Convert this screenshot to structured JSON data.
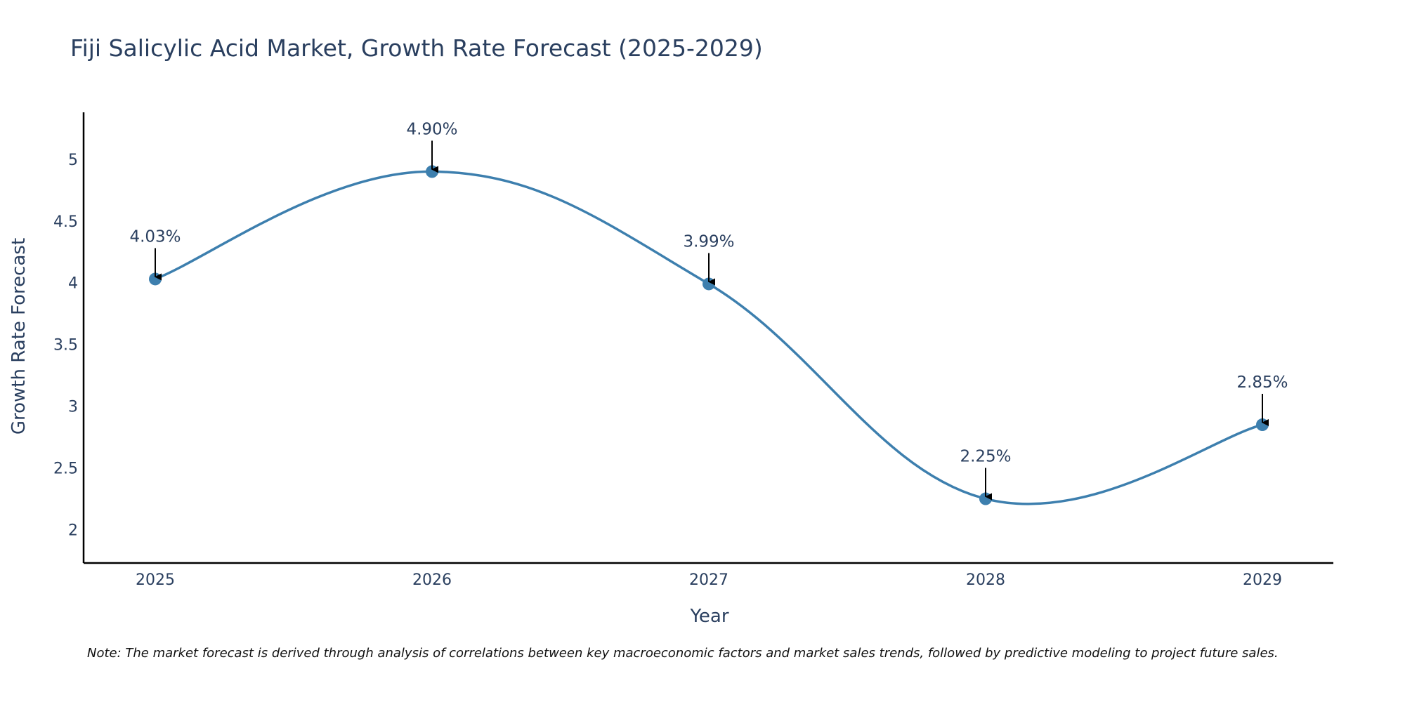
{
  "chart_data": {
    "type": "line",
    "title": "Fiji Salicylic Acid Market, Growth Rate Forecast (2025-2029)",
    "xlabel": "Year",
    "ylabel": "Growth Rate Forecast",
    "categories": [
      "2025",
      "2026",
      "2027",
      "2028",
      "2029"
    ],
    "values": [
      4.03,
      4.9,
      3.99,
      2.25,
      2.85
    ],
    "data_labels": [
      "4.03%",
      "4.90%",
      "3.99%",
      "2.25%",
      "2.85%"
    ],
    "y_ticks": [
      2,
      2.5,
      3,
      3.5,
      4,
      4.5,
      5
    ],
    "y_tick_labels": [
      "2",
      "2.5",
      "3",
      "3.5",
      "4",
      "4.5",
      "5"
    ],
    "ylim": [
      1.73,
      5.38
    ],
    "grid": false,
    "line_shape": "spline",
    "series_color": "#3d7fae",
    "arrow_color": "#000000",
    "axis_color": "#000000"
  },
  "note": "Note: The market forecast is derived through analysis of correlations between key macroeconomic factors and market sales trends, followed by predictive modeling to project future sales."
}
